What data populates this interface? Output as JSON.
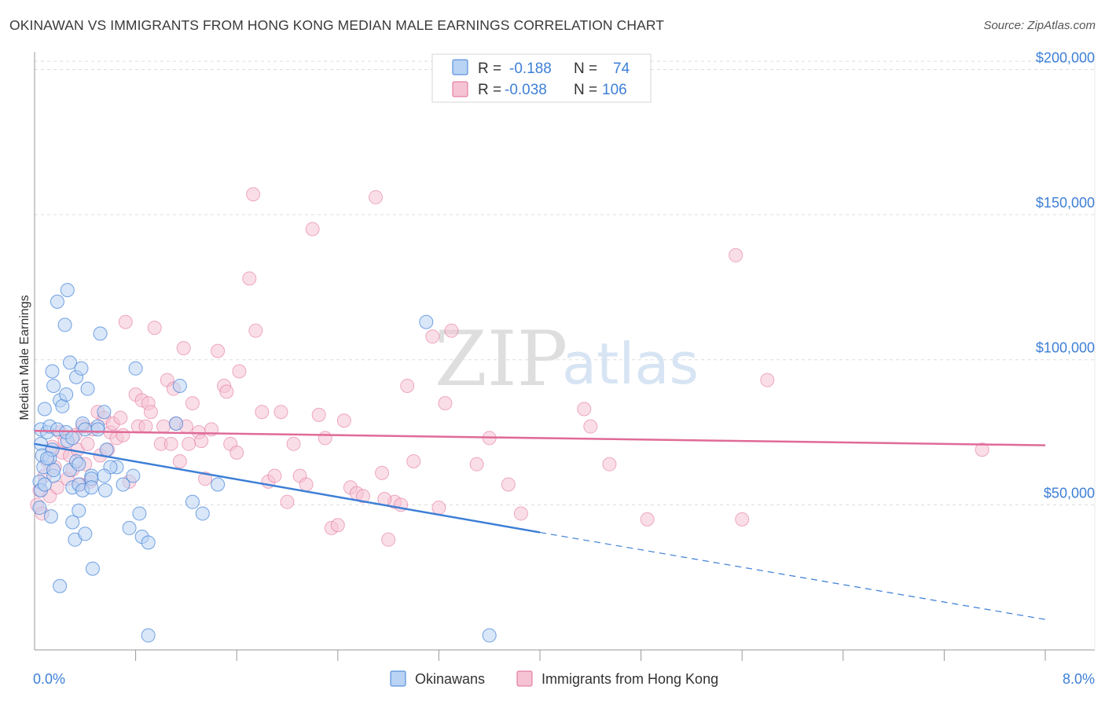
{
  "title": "OKINAWAN VS IMMIGRANTS FROM HONG KONG MEDIAN MALE EARNINGS CORRELATION CHART",
  "source": "Source: ZipAtlas.com",
  "watermark": {
    "part1": "ZIP",
    "part2": "atlas"
  },
  "colors": {
    "blue": "#3d7fd6",
    "blue_fill": "#b9d3f4",
    "pink": "#e06b98",
    "pink_fill": "#f5c3d4",
    "grid": "#dddddd",
    "axis": "#999999"
  },
  "legend": {
    "rows": [
      {
        "r_label": "R =",
        "r_value": "-0.188",
        "n_label": "N =",
        "n_value": "74"
      },
      {
        "r_label": "R =",
        "r_value": "-0.038",
        "n_label": "N =",
        "n_value": "106"
      }
    ]
  },
  "chart_data": {
    "type": "scatter",
    "title": "OKINAWAN VS IMMIGRANTS FROM HONG KONG MEDIAN MALE EARNINGS CORRELATION CHART",
    "xlabel": "",
    "ylabel": "Median Male Earnings",
    "xlim": [
      0,
      8
    ],
    "ylim": [
      0,
      205000
    ],
    "x_tick_labels": [
      {
        "value": 0,
        "label": "0.0%"
      },
      {
        "value": 8,
        "label": "8.0%"
      }
    ],
    "y_ticks": [
      {
        "value": 50000,
        "label": "$50,000"
      },
      {
        "value": 100000,
        "label": "$100,000"
      },
      {
        "value": 150000,
        "label": "$150,000"
      },
      {
        "value": 200000,
        "label": "$200,000"
      }
    ],
    "x_minor_ticks": [
      0.8,
      1.6,
      2.4,
      3.2,
      4.0,
      4.8,
      5.6,
      6.4,
      7.2,
      8.0
    ],
    "legend_position": "top-center",
    "series": [
      {
        "name": "Okinawans",
        "color": "#3d7fd6",
        "r": -0.188,
        "n": 74,
        "trend": {
          "x0": 0.0,
          "y0": 71000,
          "x1": 4.0,
          "y1": 40500,
          "dash_x1": 8.0,
          "dash_y1": 10500
        },
        "points": [
          [
            0.05,
            76000
          ],
          [
            0.05,
            71000
          ],
          [
            0.06,
            67000
          ],
          [
            0.07,
            63000
          ],
          [
            0.04,
            58000
          ],
          [
            0.05,
            55000
          ],
          [
            0.04,
            49000
          ],
          [
            0.08,
            83000
          ],
          [
            0.1,
            75000
          ],
          [
            0.12,
            66000
          ],
          [
            0.15,
            60000
          ],
          [
            0.14,
            69000
          ],
          [
            0.13,
            46000
          ],
          [
            0.12,
            77000
          ],
          [
            0.14,
            96000
          ],
          [
            0.15,
            91000
          ],
          [
            0.18,
            76000
          ],
          [
            0.18,
            120000
          ],
          [
            0.2,
            86000
          ],
          [
            0.22,
            84000
          ],
          [
            0.24,
            112000
          ],
          [
            0.25,
            88000
          ],
          [
            0.26,
            72000
          ],
          [
            0.26,
            124000
          ],
          [
            0.28,
            99000
          ],
          [
            0.28,
            62000
          ],
          [
            0.3,
            56000
          ],
          [
            0.3,
            44000
          ],
          [
            0.32,
            38000
          ],
          [
            0.33,
            94000
          ],
          [
            0.33,
            65000
          ],
          [
            0.35,
            48000
          ],
          [
            0.35,
            57000
          ],
          [
            0.37,
            97000
          ],
          [
            0.38,
            78000
          ],
          [
            0.38,
            55000
          ],
          [
            0.4,
            76000
          ],
          [
            0.4,
            40000
          ],
          [
            0.42,
            90000
          ],
          [
            0.45,
            60000
          ],
          [
            0.45,
            59000
          ],
          [
            0.46,
            28000
          ],
          [
            0.5,
            77000
          ],
          [
            0.5,
            76000
          ],
          [
            0.52,
            109000
          ],
          [
            0.55,
            82000
          ],
          [
            0.56,
            55000
          ],
          [
            0.57,
            69000
          ],
          [
            0.65,
            63000
          ],
          [
            0.7,
            57000
          ],
          [
            0.75,
            42000
          ],
          [
            0.78,
            60000
          ],
          [
            0.8,
            97000
          ],
          [
            0.83,
            47000
          ],
          [
            0.85,
            39000
          ],
          [
            0.9,
            37000
          ],
          [
            0.9,
            5000
          ],
          [
            1.15,
            91000
          ],
          [
            1.12,
            78000
          ],
          [
            1.25,
            51000
          ],
          [
            1.33,
            47000
          ],
          [
            1.45,
            57000
          ],
          [
            3.1,
            113000
          ],
          [
            3.6,
            5000
          ],
          [
            0.2,
            22000
          ],
          [
            0.15,
            62000
          ],
          [
            0.08,
            57000
          ],
          [
            0.6,
            63000
          ],
          [
            0.1,
            66000
          ],
          [
            0.25,
            75000
          ],
          [
            0.3,
            73000
          ],
          [
            0.55,
            60000
          ],
          [
            0.45,
            56000
          ],
          [
            0.35,
            64000
          ]
        ]
      },
      {
        "name": "Immigrants from Hong Kong",
        "color": "#e06b98",
        "r": -0.038,
        "n": 106,
        "trend": {
          "x0": 0.0,
          "y0": 75500,
          "x1": 8.0,
          "y1": 70500
        },
        "points": [
          [
            0.02,
            50000
          ],
          [
            0.04,
            55000
          ],
          [
            0.06,
            47000
          ],
          [
            0.08,
            60000
          ],
          [
            0.1,
            65000
          ],
          [
            0.12,
            53000
          ],
          [
            0.14,
            70000
          ],
          [
            0.16,
            63000
          ],
          [
            0.18,
            56000
          ],
          [
            0.2,
            75000
          ],
          [
            0.22,
            68000
          ],
          [
            0.24,
            72000
          ],
          [
            0.26,
            59000
          ],
          [
            0.28,
            67000
          ],
          [
            0.3,
            62000
          ],
          [
            0.32,
            74000
          ],
          [
            0.34,
            69000
          ],
          [
            0.36,
            57000
          ],
          [
            0.38,
            77000
          ],
          [
            0.4,
            64000
          ],
          [
            0.42,
            71000
          ],
          [
            0.44,
            58000
          ],
          [
            0.46,
            76000
          ],
          [
            0.5,
            82000
          ],
          [
            0.52,
            67000
          ],
          [
            0.55,
            80000
          ],
          [
            0.58,
            69000
          ],
          [
            0.6,
            75000
          ],
          [
            0.62,
            78000
          ],
          [
            0.65,
            73000
          ],
          [
            0.68,
            80000
          ],
          [
            0.7,
            74000
          ],
          [
            0.72,
            113000
          ],
          [
            0.75,
            58000
          ],
          [
            0.8,
            88000
          ],
          [
            0.82,
            77000
          ],
          [
            0.85,
            86000
          ],
          [
            0.88,
            77000
          ],
          [
            0.9,
            85000
          ],
          [
            0.92,
            82000
          ],
          [
            0.95,
            111000
          ],
          [
            1.0,
            71000
          ],
          [
            1.02,
            77000
          ],
          [
            1.05,
            93000
          ],
          [
            1.08,
            71000
          ],
          [
            1.1,
            90000
          ],
          [
            1.12,
            78000
          ],
          [
            1.15,
            65000
          ],
          [
            1.18,
            104000
          ],
          [
            1.2,
            77000
          ],
          [
            1.22,
            71000
          ],
          [
            1.25,
            85000
          ],
          [
            1.3,
            75000
          ],
          [
            1.32,
            72000
          ],
          [
            1.35,
            59000
          ],
          [
            1.4,
            76000
          ],
          [
            1.45,
            103000
          ],
          [
            1.5,
            91000
          ],
          [
            1.52,
            89000
          ],
          [
            1.55,
            71000
          ],
          [
            1.6,
            68000
          ],
          [
            1.62,
            96000
          ],
          [
            1.7,
            128000
          ],
          [
            1.75,
            110000
          ],
          [
            1.8,
            82000
          ],
          [
            1.85,
            58000
          ],
          [
            1.9,
            60000
          ],
          [
            1.95,
            82000
          ],
          [
            2.0,
            51000
          ],
          [
            2.05,
            71000
          ],
          [
            2.1,
            60000
          ],
          [
            2.15,
            57000
          ],
          [
            2.2,
            145000
          ],
          [
            2.25,
            81000
          ],
          [
            2.3,
            73000
          ],
          [
            2.35,
            42000
          ],
          [
            2.4,
            43000
          ],
          [
            2.45,
            79000
          ],
          [
            2.5,
            56000
          ],
          [
            2.55,
            54000
          ],
          [
            2.6,
            53000
          ],
          [
            2.7,
            156000
          ],
          [
            2.75,
            61000
          ],
          [
            2.8,
            38000
          ],
          [
            2.85,
            51000
          ],
          [
            2.9,
            50000
          ],
          [
            2.95,
            91000
          ],
          [
            3.0,
            65000
          ],
          [
            3.15,
            108000
          ],
          [
            3.2,
            49000
          ],
          [
            3.25,
            85000
          ],
          [
            3.3,
            110000
          ],
          [
            3.5,
            64000
          ],
          [
            3.6,
            73000
          ],
          [
            3.75,
            57000
          ],
          [
            3.85,
            47000
          ],
          [
            4.35,
            83000
          ],
          [
            4.4,
            77000
          ],
          [
            4.55,
            64000
          ],
          [
            4.85,
            45000
          ],
          [
            5.55,
            136000
          ],
          [
            5.6,
            45000
          ],
          [
            5.8,
            93000
          ],
          [
            7.5,
            69000
          ],
          [
            1.73,
            157000
          ],
          [
            2.77,
            52000
          ]
        ]
      }
    ]
  }
}
